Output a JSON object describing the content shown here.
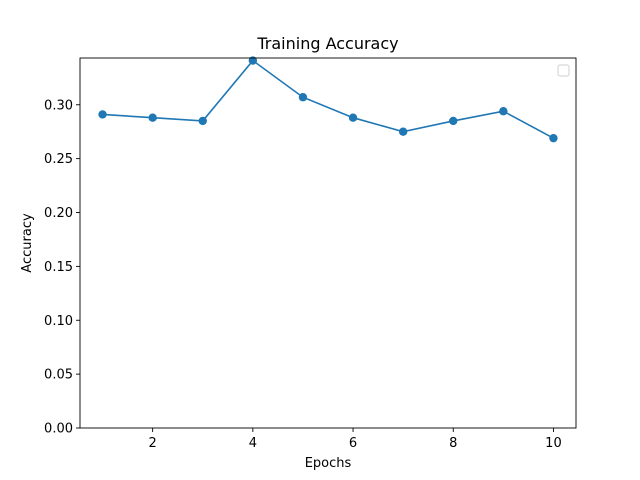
{
  "chart_data": {
    "type": "line",
    "title": "Training Accuracy",
    "xlabel": "Epochs",
    "ylabel": "Accuracy",
    "x": [
      1,
      2,
      3,
      4,
      5,
      6,
      7,
      8,
      9,
      10
    ],
    "series": [
      {
        "values": [
          0.291,
          0.288,
          0.285,
          0.341,
          0.307,
          0.288,
          0.275,
          0.285,
          0.294,
          0.269
        ],
        "color": "#1f77b4"
      }
    ],
    "xlim": [
      0.55,
      10.45
    ],
    "ylim": [
      0,
      0.3434
    ],
    "xticks": [
      2,
      4,
      6,
      8,
      10
    ],
    "yticks": [
      0.0,
      0.05,
      0.1,
      0.15,
      0.2,
      0.25,
      0.3
    ],
    "grid": false,
    "legend": {
      "position": "top-right",
      "entries": []
    }
  }
}
